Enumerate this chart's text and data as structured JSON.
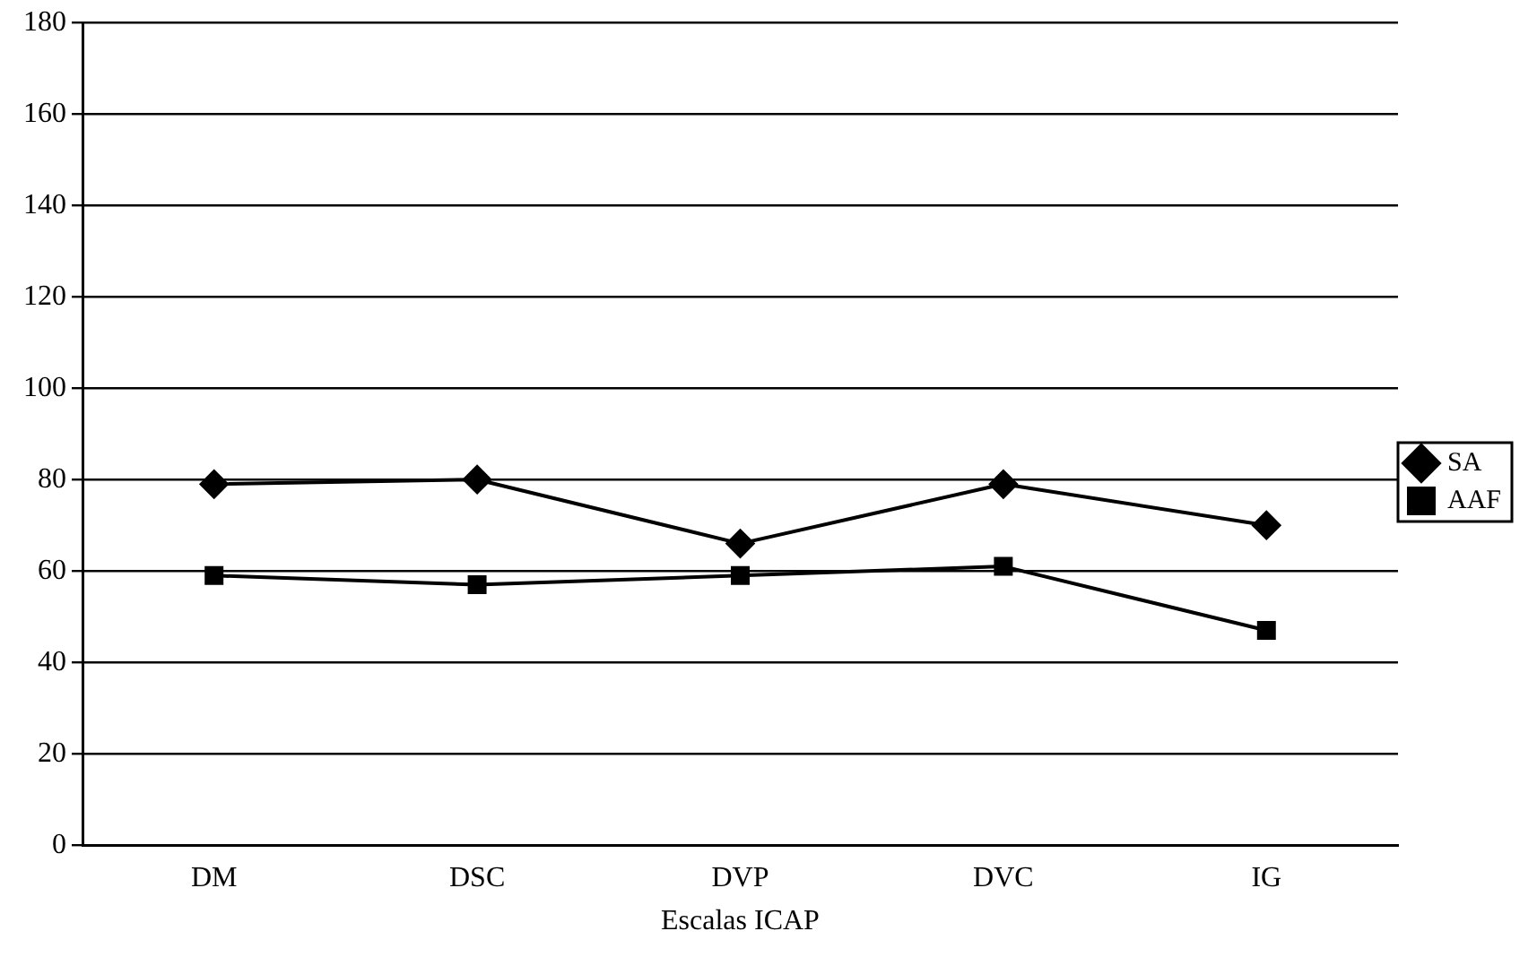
{
  "chart_data": {
    "type": "line",
    "xlabel": "Escalas ICAP",
    "categories": [
      "DM",
      "DSC",
      "DVP",
      "DVC",
      "IG"
    ],
    "series": [
      {
        "name": "SA",
        "color": "#000000",
        "marker": "diamond",
        "values": [
          79,
          80,
          66,
          79,
          70
        ]
      },
      {
        "name": "AAF",
        "color": "#000000",
        "marker": "square",
        "values": [
          59,
          57,
          59,
          61,
          47
        ]
      }
    ],
    "ylim": [
      0,
      180
    ],
    "yticks": [
      0,
      20,
      40,
      60,
      80,
      100,
      120,
      140,
      160,
      180
    ],
    "grid": "y",
    "legend": "right",
    "line_style": "solid"
  }
}
